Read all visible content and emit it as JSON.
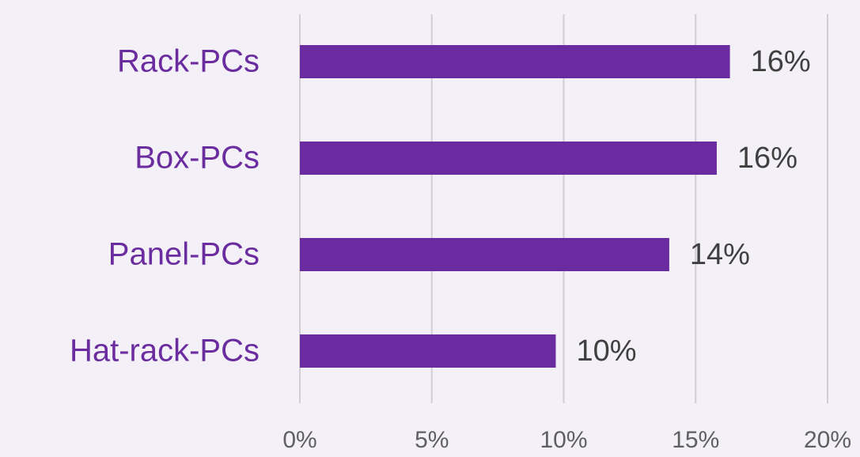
{
  "chart_data": {
    "type": "bar",
    "orientation": "horizontal",
    "categories": [
      "Rack-PCs",
      "Box-PCs",
      "Panel-PCs",
      "Hat-rack-PCs"
    ],
    "values": [
      16.3,
      15.8,
      14.0,
      9.7
    ],
    "value_labels": [
      "16%",
      "16%",
      "14%",
      "10%"
    ],
    "color": "#6b2ba0",
    "xlim": [
      0,
      20
    ],
    "xticks": [
      {
        "value": 0,
        "label": "0%"
      },
      {
        "value": 5,
        "label": "5%"
      },
      {
        "value": 10,
        "label": "10%"
      },
      {
        "value": 15,
        "label": "15%"
      },
      {
        "value": 20,
        "label": "20%"
      }
    ],
    "grid": true
  }
}
